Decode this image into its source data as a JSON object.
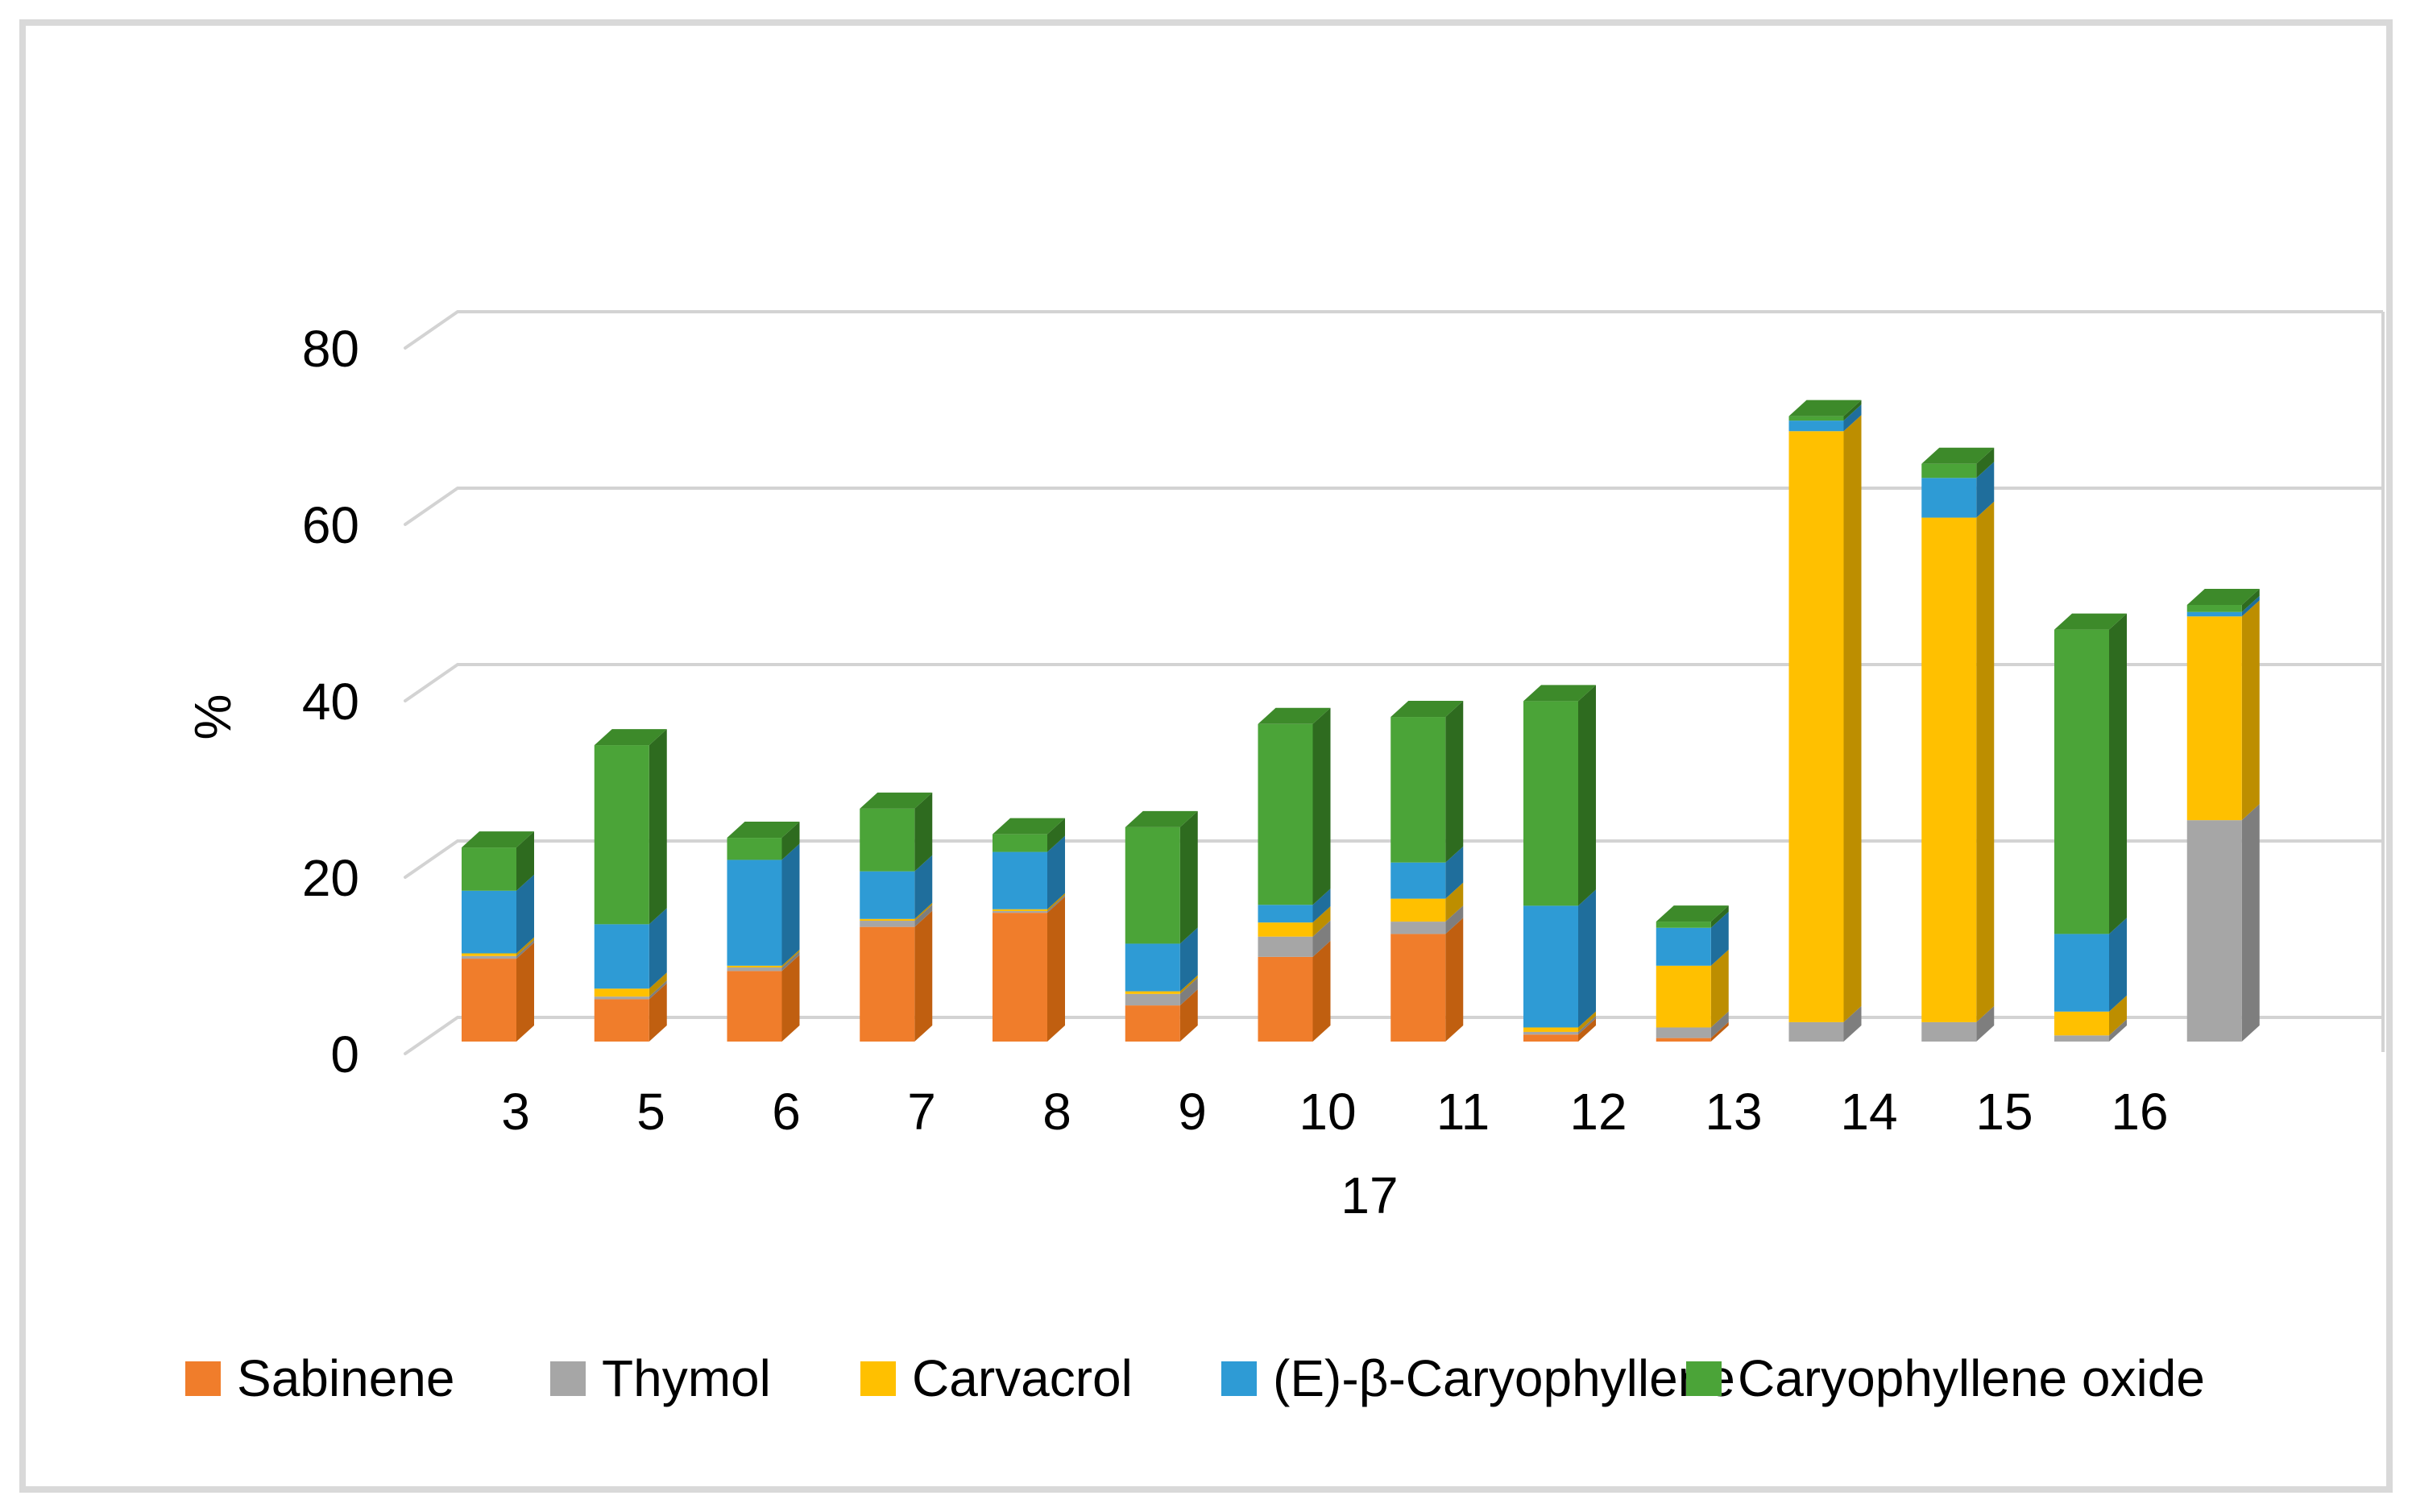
{
  "figure": {
    "background": "#ffffff",
    "border_color": "#d9d9d9",
    "gridline_color": "#d3d3d3"
  },
  "y_axis": {
    "title": "%",
    "ticks": [
      "0",
      "20",
      "40",
      "60",
      "80"
    ],
    "tick_values": [
      0,
      20,
      40,
      60,
      80
    ]
  },
  "x_axis": {
    "row1_labels": [
      "3",
      "5",
      "6",
      "7",
      "8",
      "9",
      "10",
      "11",
      "12",
      "13",
      "14",
      "15",
      "16"
    ],
    "row2_label": "17"
  },
  "legend": [
    {
      "label": "Sabinene",
      "color": "#F07D2B"
    },
    {
      "label": "Thymol",
      "color": "#A6A6A6"
    },
    {
      "label": "Carvacrol",
      "color": "#FFC000"
    },
    {
      "label": "(E)-β-Caryophyllene",
      "color": "#2E9BD5"
    },
    {
      "label": "Caryophyllene oxide",
      "color": "#4BA438"
    }
  ],
  "chart_data": {
    "type": "bar",
    "stacked": true,
    "pseudo_3d": true,
    "title": "",
    "xlabel": "",
    "ylabel": "%",
    "ylim": [
      0,
      80
    ],
    "grid": true,
    "legend_position": "bottom",
    "categories": [
      "3",
      "5",
      "6",
      "7",
      "8",
      "9",
      "10",
      "11",
      "12",
      "13",
      "14",
      "15",
      "16",
      "17"
    ],
    "series": [
      {
        "name": "Sabinene",
        "color": "#F07D2B",
        "side_color": "#C05F10",
        "values": [
          9.4,
          4.8,
          8.0,
          13.0,
          14.6,
          4.1,
          9.6,
          12.2,
          0.8,
          0.4,
          0,
          0,
          0,
          0
        ]
      },
      {
        "name": "Thymol",
        "color": "#A6A6A6",
        "side_color": "#7E7E7E",
        "values": [
          0.3,
          0.3,
          0.4,
          0.7,
          0.2,
          1.3,
          2.3,
          1.4,
          0.3,
          1.2,
          2.2,
          2.2,
          0.7,
          25.1
        ]
      },
      {
        "name": "Carvacrol",
        "color": "#FFC000",
        "side_color": "#BD8E00",
        "values": [
          0.3,
          0.9,
          0.2,
          0.2,
          0.2,
          0.3,
          1.6,
          2.6,
          0.5,
          7.0,
          67.0,
          57.2,
          2.7,
          23.1
        ]
      },
      {
        "name": "(E)-β-Caryophyllene",
        "color": "#2E9BD5",
        "side_color": "#1F6E9C",
        "values": [
          7.1,
          7.3,
          12.0,
          5.4,
          6.5,
          5.4,
          2.0,
          4.1,
          13.8,
          4.3,
          1.2,
          4.5,
          8.8,
          0.5
        ]
      },
      {
        "name": "Caryophyllene oxide",
        "color": "#4BA438",
        "side_color": "#2E6B1F",
        "top_color": "#3D8A2A",
        "values": [
          4.9,
          20.3,
          2.5,
          7.1,
          2.0,
          13.2,
          20.5,
          16.5,
          23.2,
          0.7,
          0.5,
          1.6,
          34.5,
          0.8
        ]
      }
    ]
  }
}
